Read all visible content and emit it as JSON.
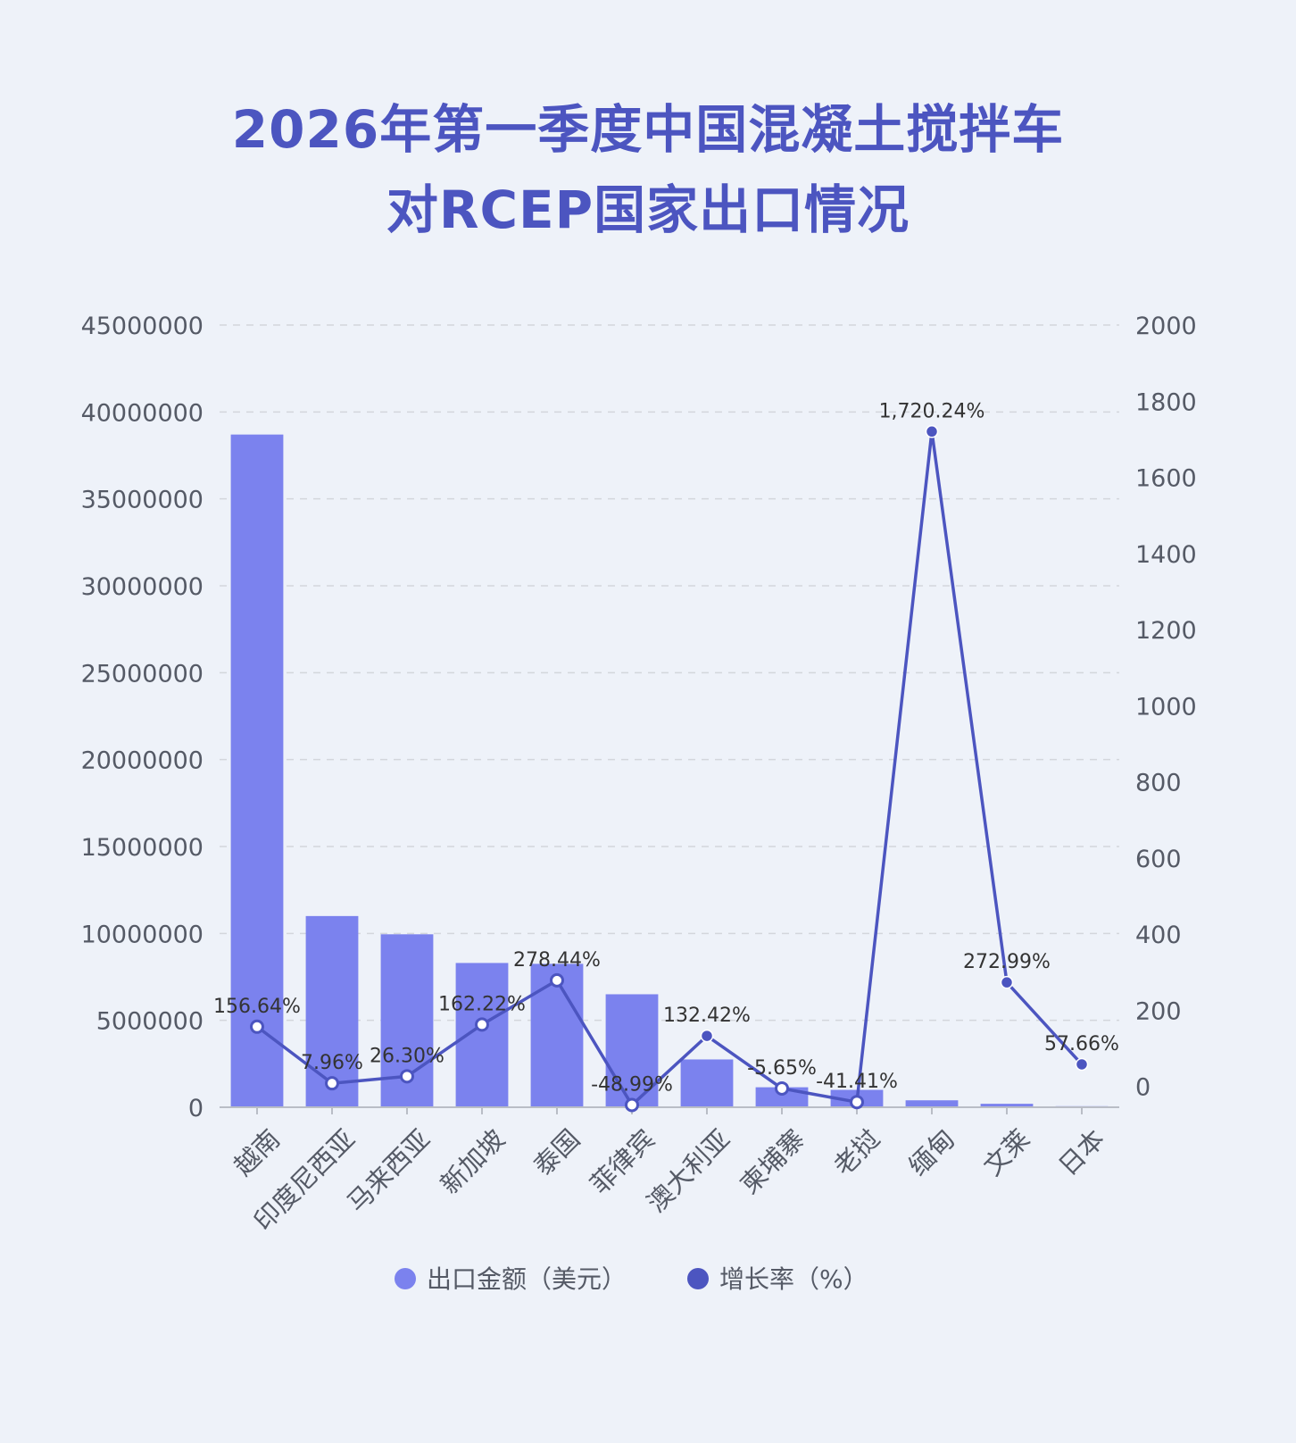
{
  "title": {
    "line1": "2026年第一季度中国混凝土搅拌车",
    "line2": "对RCEP国家出口情况"
  },
  "colors": {
    "background": "#eef2f9",
    "title": "#4c55c0",
    "bar": "#7b82ee",
    "line": "#4c55c0",
    "grid": "#d3d6dc",
    "axis_text": "#555a66"
  },
  "chart_data": {
    "type": "bar",
    "categories": [
      "越南",
      "印度尼西亚",
      "马来西亚",
      "新加坡",
      "泰国",
      "菲律宾",
      "澳大利亚",
      "柬埔寨",
      "老挝",
      "缅甸",
      "文莱",
      "日本"
    ],
    "series": [
      {
        "name": "出口金额（美元）",
        "type": "bar",
        "axis": "left",
        "values": [
          38700000,
          11000000,
          9950000,
          8300000,
          8250000,
          6500000,
          2750000,
          1150000,
          1000000,
          400000,
          200000,
          60000
        ]
      },
      {
        "name": "增长率（%）",
        "type": "line",
        "axis": "right",
        "values": [
          156.64,
          7.96,
          26.3,
          162.22,
          278.44,
          -48.99,
          132.42,
          -5.65,
          -41.41,
          1720.24,
          272.99,
          57.66
        ],
        "labels": [
          "156.64%",
          "7.96%",
          "26.30%",
          "162.22%",
          "278.44%",
          "-48.99%",
          "132.42%",
          "-5.65%",
          "-41.41%",
          "1,720.24%",
          "272.99%",
          "57.66%"
        ]
      }
    ],
    "y_left": {
      "min": 0,
      "max": 45000000,
      "ticks": [
        0,
        5000000,
        10000000,
        15000000,
        20000000,
        25000000,
        30000000,
        35000000,
        40000000,
        45000000
      ],
      "tick_labels": [
        "0",
        "5000000",
        "10000000",
        "15000000",
        "20000000",
        "25000000",
        "30000000",
        "35000000",
        "40000000",
        "45000000"
      ]
    },
    "y_right": {
      "min": -55,
      "max": 2000,
      "ticks": [
        0,
        200,
        400,
        600,
        800,
        1000,
        1200,
        1400,
        1600,
        1800,
        2000
      ],
      "tick_labels": [
        "0",
        "200",
        "400",
        "600",
        "800",
        "1000",
        "1200",
        "1400",
        "1600",
        "1800",
        "2000"
      ]
    },
    "grid": true,
    "legend_position": "bottom"
  }
}
